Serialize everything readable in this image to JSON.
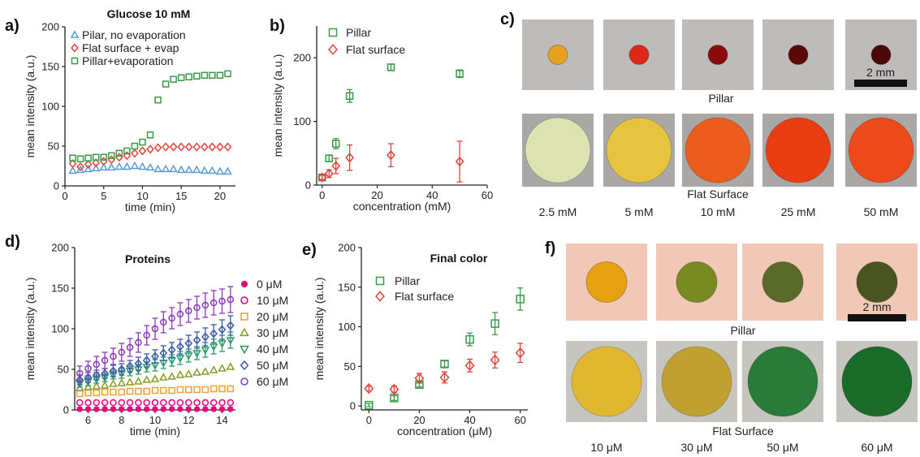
{
  "chart_data": [
    {
      "panel": "a)",
      "type": "scatter",
      "title": "Glucose 10 mM",
      "xlabel": "time (min)",
      "ylabel": "mean intensity (a.u.)",
      "xlim": [
        0,
        22
      ],
      "ylim": [
        0,
        200
      ],
      "xticks": [
        "0",
        "5",
        "10",
        "15",
        "20"
      ],
      "yticks": [
        "0",
        "50",
        "100",
        "150",
        "200"
      ],
      "legend_position": "top-left",
      "series": [
        {
          "name": "Pilar, no evaporation",
          "marker": "triangle",
          "color": "#5b9bd5",
          "x": [
            1,
            2,
            3,
            4,
            5,
            6,
            7,
            8,
            9,
            10,
            11,
            12,
            13,
            14,
            15,
            16,
            17,
            18,
            19,
            20,
            21
          ],
          "y": [
            19,
            20,
            21,
            22,
            23,
            23,
            24,
            24,
            25,
            24,
            23,
            21,
            21,
            21,
            20,
            20,
            20,
            19,
            19,
            18,
            18
          ]
        },
        {
          "name": "Flat surface + evap",
          "marker": "diamond",
          "color": "#e0443a",
          "x": [
            1,
            2,
            3,
            4,
            5,
            6,
            7,
            8,
            9,
            10,
            11,
            12,
            13,
            14,
            15,
            16,
            17,
            18,
            19,
            20,
            21
          ],
          "y": [
            28,
            24,
            27,
            29,
            31,
            33,
            36,
            38,
            41,
            44,
            46,
            48,
            49,
            49,
            49,
            49,
            49,
            49,
            49,
            49,
            49
          ]
        },
        {
          "name": "Pillar+evaporation",
          "marker": "square",
          "color": "#3a9a4a",
          "x": [
            1,
            2,
            3,
            4,
            5,
            6,
            7,
            8,
            9,
            10,
            11,
            12,
            13,
            14,
            15,
            16,
            17,
            18,
            19,
            20,
            21
          ],
          "y": [
            35,
            34,
            35,
            36,
            36,
            38,
            41,
            44,
            50,
            55,
            64,
            108,
            128,
            134,
            136,
            137,
            138,
            139,
            139,
            139,
            141
          ]
        }
      ]
    },
    {
      "panel": "b)",
      "type": "scatter",
      "xlabel": "concentration (mM)",
      "ylabel": "mean intensity (a.u.)",
      "xlim": [
        -2,
        60
      ],
      "ylim": [
        0,
        250
      ],
      "xticks": [
        "0",
        "20",
        "40",
        "60"
      ],
      "yticks": [
        "0",
        "100",
        "200"
      ],
      "legend_position": "top-left",
      "series": [
        {
          "name": "Pillar",
          "marker": "square",
          "color": "#3a9a4a",
          "x": [
            0,
            2.5,
            5,
            10,
            25,
            50
          ],
          "y": [
            12,
            42,
            65,
            140,
            185,
            175
          ],
          "err": [
            4,
            5,
            8,
            10,
            5,
            6
          ]
        },
        {
          "name": "Flat surface",
          "marker": "diamond",
          "color": "#e0443a",
          "x": [
            0,
            2.5,
            5,
            10,
            25,
            50
          ],
          "y": [
            12,
            18,
            30,
            43,
            47,
            37
          ],
          "err": [
            5,
            6,
            12,
            20,
            18,
            32
          ]
        }
      ]
    },
    {
      "panel": "d)",
      "type": "scatter",
      "title": "Proteins",
      "xlabel": "time (min)",
      "ylabel": "mean intensity (a.u.)",
      "xlim": [
        5.2,
        14.8
      ],
      "ylim": [
        0,
        200
      ],
      "xticks": [
        "6",
        "8",
        "10",
        "12",
        "14"
      ],
      "yticks": [
        "0",
        "50",
        "100",
        "150",
        "200"
      ],
      "legend_position": "right",
      "x": [
        5.5,
        6,
        6.5,
        7,
        7.5,
        8,
        8.5,
        9,
        9.5,
        10,
        10.5,
        11,
        11.5,
        12,
        12.5,
        13,
        13.5,
        14,
        14.5
      ],
      "series": [
        {
          "name": "0 μM",
          "marker": "dot",
          "color": "#e6007e",
          "y": [
            1,
            1,
            1,
            1,
            1,
            1,
            1,
            1,
            1,
            1,
            1,
            1,
            1,
            1,
            1,
            1,
            1,
            1,
            1
          ]
        },
        {
          "name": "10 μM",
          "marker": "circle",
          "color": "#e6007e",
          "y": [
            9,
            9,
            9,
            9,
            9,
            9,
            9,
            9,
            9,
            9,
            9,
            9,
            9,
            9,
            9,
            9,
            9,
            9,
            9
          ]
        },
        {
          "name": "20 μM",
          "marker": "square",
          "color": "#f0a030",
          "y": [
            20,
            21,
            21,
            22,
            22,
            22,
            23,
            23,
            23,
            24,
            24,
            24,
            25,
            25,
            25,
            25,
            26,
            26,
            26
          ]
        },
        {
          "name": "30 μM",
          "marker": "triangle",
          "color": "#8a9a2a",
          "y": [
            27,
            28,
            29,
            30,
            32,
            33,
            34,
            35,
            37,
            38,
            40,
            41,
            43,
            44,
            46,
            47,
            49,
            51,
            53
          ]
        },
        {
          "name": "40 μM",
          "marker": "triangle-down",
          "color": "#2a9a6a",
          "y": [
            33,
            35,
            38,
            40,
            43,
            45,
            48,
            50,
            53,
            55,
            58,
            61,
            64,
            67,
            70,
            74,
            78,
            82,
            86
          ],
          "err": [
            5,
            5,
            5,
            5,
            5,
            6,
            6,
            6,
            6,
            7,
            7,
            7,
            8,
            8,
            8,
            9,
            9,
            10,
            10
          ]
        },
        {
          "name": "50 μM",
          "marker": "diamond",
          "color": "#3a5aa8",
          "y": [
            37,
            40,
            43,
            45,
            48,
            50,
            54,
            57,
            61,
            66,
            70,
            74,
            78,
            82,
            86,
            90,
            94,
            99,
            104
          ],
          "err": [
            6,
            6,
            6,
            6,
            7,
            7,
            7,
            8,
            8,
            8,
            9,
            9,
            9,
            10,
            10,
            11,
            11,
            12,
            12
          ]
        },
        {
          "name": "60 μM",
          "marker": "circle",
          "color": "#8a3ab8",
          "y": [
            45,
            51,
            56,
            61,
            66,
            71,
            77,
            83,
            92,
            100,
            108,
            113,
            118,
            122,
            126,
            129,
            132,
            134,
            136
          ],
          "err": [
            9,
            9,
            10,
            10,
            10,
            11,
            11,
            12,
            12,
            13,
            13,
            13,
            14,
            14,
            14,
            15,
            15,
            15,
            16
          ]
        }
      ]
    },
    {
      "panel": "e)",
      "type": "scatter",
      "title": "Final color",
      "xlabel": "concentration (μM)",
      "ylabel": "mean intensity (a.u.)",
      "xlim": [
        -3,
        63
      ],
      "ylim": [
        -5,
        200
      ],
      "xticks": [
        "0",
        "20",
        "40",
        "60"
      ],
      "yticks": [
        "0",
        "50",
        "100",
        "150",
        "200"
      ],
      "legend_position": "top-left",
      "series": [
        {
          "name": "Pillar",
          "marker": "square",
          "color": "#3a9a4a",
          "x": [
            0,
            10,
            20,
            30,
            40,
            50,
            60
          ],
          "y": [
            1,
            10,
            27,
            53,
            84,
            104,
            135
          ],
          "err": [
            2,
            3,
            3,
            4,
            8,
            14,
            14
          ]
        },
        {
          "name": "Flat surface",
          "marker": "diamond",
          "color": "#e0443a",
          "x": [
            0,
            10,
            20,
            30,
            40,
            50,
            60
          ],
          "y": [
            22,
            21,
            35,
            36,
            51,
            58,
            67
          ],
          "err": [
            3,
            4,
            6,
            7,
            8,
            10,
            12
          ]
        }
      ]
    }
  ],
  "panel_c": {
    "label": "c)",
    "scale_bar": "2 mm",
    "row_labels": [
      "Pillar",
      "Flat Surface"
    ],
    "concentrations": [
      "2.5 mM",
      "5 mM",
      "10 mM",
      "25 mM",
      "50 mM"
    ],
    "pillar_colors": [
      "#e8a020",
      "#e02818",
      "#8a0a0a",
      "#5a0808",
      "#4a0808"
    ],
    "flat_colors": [
      "#dde3b0",
      "#e6c440",
      "#ec5c1c",
      "#ea3e12",
      "#ec4a1a"
    ]
  },
  "panel_f": {
    "label": "f)",
    "scale_bar": "2 mm",
    "row_labels": [
      "Pillar",
      "Flat Surface"
    ],
    "concentrations": [
      "10 μM",
      "30 μM",
      "50 μM",
      "60 μM"
    ],
    "pillar_colors": [
      "#e6a010",
      "#7a8a22",
      "#5a6a28",
      "#4a5420"
    ],
    "flat_colors": [
      "#e0b830",
      "#c0a030",
      "#2a7a3a",
      "#1a6a2a"
    ]
  }
}
